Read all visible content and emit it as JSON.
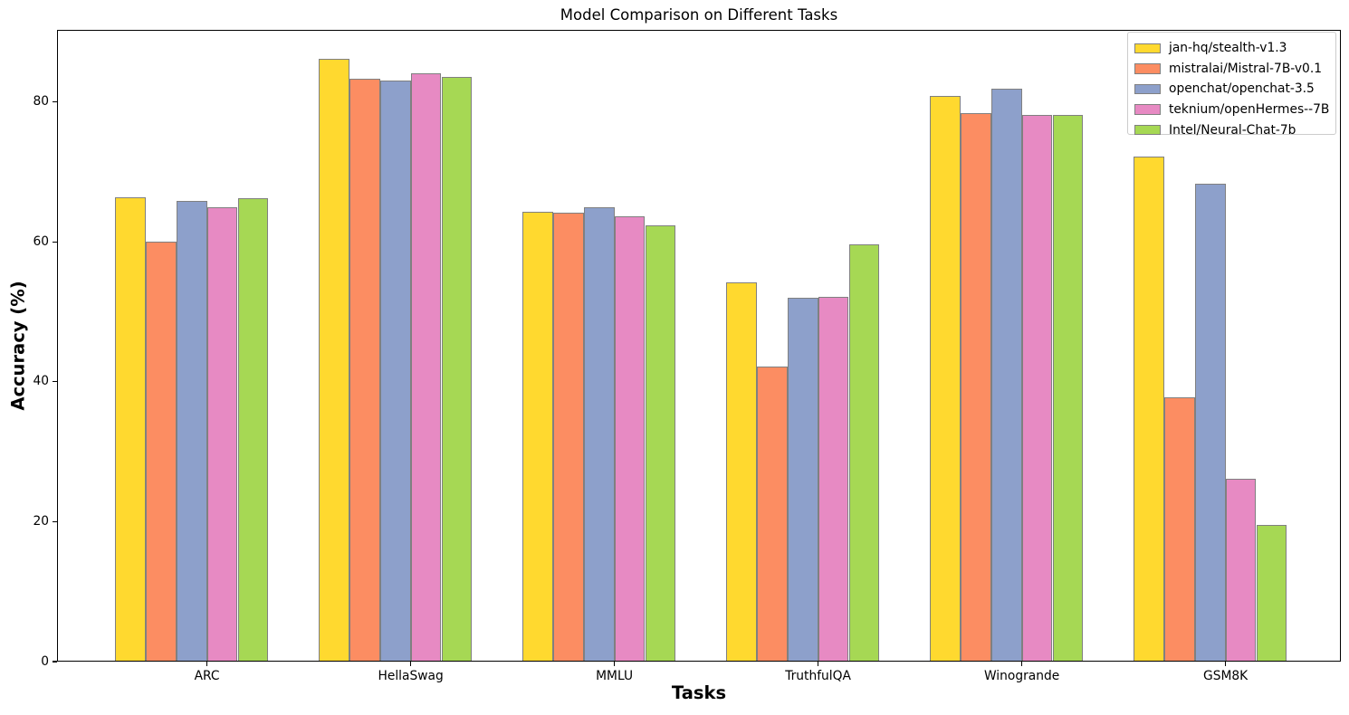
{
  "figure": {
    "title": "Model Comparison on Different Tasks",
    "xlabel": "Tasks",
    "ylabel": "Accuracy (%)"
  },
  "chart_data": {
    "type": "bar",
    "title": "Model Comparison on Different Tasks",
    "xlabel": "Tasks",
    "ylabel": "Accuracy (%)",
    "categories": [
      "ARC",
      "HellaSwag",
      "MMLU",
      "TruthfulQA",
      "Winogrande",
      "GSM8K"
    ],
    "series": [
      {
        "name": "jan-hq/stealth-v1.3",
        "color": "#FFD92F",
        "values": [
          66.4,
          86.1,
          64.3,
          54.2,
          80.8,
          72.2
        ]
      },
      {
        "name": "mistralai/Mistral-7B-v0.1",
        "color": "#FC8D62",
        "values": [
          60.0,
          83.3,
          64.2,
          42.2,
          78.4,
          37.8
        ]
      },
      {
        "name": "openchat/openchat-3.5",
        "color": "#8DA0CB",
        "values": [
          65.9,
          83.0,
          65.0,
          52.0,
          81.9,
          68.3
        ]
      },
      {
        "name": "teknium/openHermes--7B",
        "color": "#E78AC3",
        "values": [
          65.0,
          84.1,
          63.6,
          52.2,
          78.1,
          26.1
        ]
      },
      {
        "name": "Intel/Neural-Chat-7b",
        "color": "#A6D854",
        "values": [
          66.3,
          83.6,
          62.3,
          59.7,
          78.2,
          19.5
        ]
      }
    ],
    "yticks": [
      0,
      20,
      40,
      60,
      80
    ],
    "ylim": [
      0,
      90.3
    ],
    "bar_edge_color": "#808080",
    "legend_position": "upper right",
    "grid": false
  }
}
